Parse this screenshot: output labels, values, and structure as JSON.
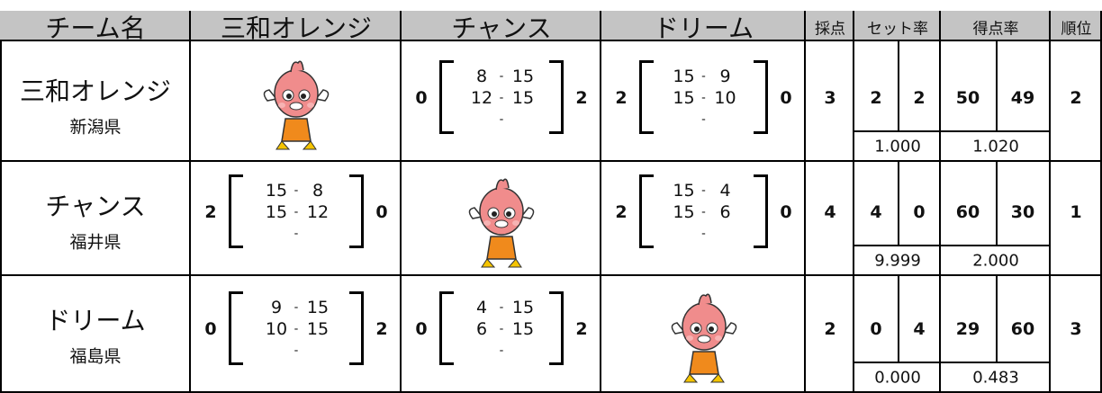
{
  "header": [
    "チーム名",
    "三和オレンジ",
    "チャンス",
    "ドリーム",
    "採点",
    "セット率",
    "得点率",
    "順位"
  ],
  "separator": "-",
  "rows": [
    {
      "team": "三和オレンジ",
      "prefecture": "新潟県",
      "matches": [
        null,
        {
          "won": 0,
          "sets": [
            [
              8,
              15
            ],
            [
              12,
              15
            ]
          ],
          "lost": 2
        },
        {
          "won": 2,
          "sets": [
            [
              15,
              9
            ],
            [
              15,
              10
            ]
          ],
          "lost": 0
        }
      ],
      "points": 3,
      "sets_won": 2,
      "sets_lost": 2,
      "set_rate": "1.000",
      "score_for": 50,
      "score_against": 49,
      "score_rate": "1.020",
      "rank": 2
    },
    {
      "team": "チャンス",
      "prefecture": "福井県",
      "matches": [
        {
          "won": 2,
          "sets": [
            [
              15,
              8
            ],
            [
              15,
              12
            ]
          ],
          "lost": 0
        },
        null,
        {
          "won": 2,
          "sets": [
            [
              15,
              4
            ],
            [
              15,
              6
            ]
          ],
          "lost": 0
        }
      ],
      "points": 4,
      "sets_won": 4,
      "sets_lost": 0,
      "set_rate": "9.999",
      "score_for": 60,
      "score_against": 30,
      "score_rate": "2.000",
      "rank": 1
    },
    {
      "team": "ドリーム",
      "prefecture": "福島県",
      "matches": [
        {
          "won": 0,
          "sets": [
            [
              9,
              15
            ],
            [
              10,
              15
            ]
          ],
          "lost": 2
        },
        {
          "won": 0,
          "sets": [
            [
              4,
              15
            ],
            [
              6,
              15
            ]
          ],
          "lost": 2
        },
        null
      ],
      "points": 2,
      "sets_won": 0,
      "sets_lost": 4,
      "set_rate": "0.000",
      "score_for": 29,
      "score_against": 60,
      "score_rate": "0.483",
      "rank": 3
    }
  ]
}
